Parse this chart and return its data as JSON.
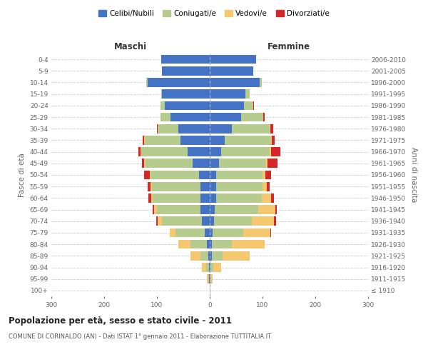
{
  "age_groups": [
    "100+",
    "95-99",
    "90-94",
    "85-89",
    "80-84",
    "75-79",
    "70-74",
    "65-69",
    "60-64",
    "55-59",
    "50-54",
    "45-49",
    "40-44",
    "35-39",
    "30-34",
    "25-29",
    "20-24",
    "15-19",
    "10-14",
    "5-9",
    "0-4"
  ],
  "birth_years": [
    "≤ 1910",
    "1911-1915",
    "1916-1920",
    "1921-1925",
    "1926-1930",
    "1931-1935",
    "1936-1940",
    "1941-1945",
    "1946-1950",
    "1951-1955",
    "1956-1960",
    "1961-1965",
    "1966-1970",
    "1971-1975",
    "1976-1980",
    "1981-1985",
    "1986-1990",
    "1991-1995",
    "1996-2000",
    "2001-2005",
    "2006-2010"
  ],
  "colors": {
    "celibi": "#4472c4",
    "coniugati": "#b5cc8e",
    "vedovi": "#f5c76e",
    "divorziati": "#d62728"
  },
  "maschi": {
    "celibi": [
      0,
      1,
      2,
      3,
      5,
      10,
      15,
      18,
      18,
      18,
      20,
      32,
      42,
      55,
      60,
      75,
      85,
      90,
      118,
      90,
      92
    ],
    "coniugati": [
      0,
      2,
      5,
      15,
      32,
      55,
      75,
      82,
      90,
      92,
      92,
      90,
      88,
      68,
      38,
      18,
      8,
      2,
      2,
      0,
      0
    ],
    "vedovi": [
      0,
      2,
      8,
      18,
      22,
      10,
      8,
      5,
      3,
      2,
      2,
      2,
      1,
      1,
      0,
      0,
      0,
      0,
      0,
      0,
      0
    ],
    "divorziati": [
      0,
      0,
      0,
      0,
      0,
      0,
      3,
      3,
      5,
      6,
      10,
      5,
      4,
      3,
      2,
      0,
      0,
      0,
      0,
      0,
      0
    ]
  },
  "femmine": {
    "celibi": [
      0,
      1,
      2,
      4,
      4,
      5,
      8,
      10,
      12,
      12,
      12,
      18,
      22,
      28,
      42,
      60,
      65,
      68,
      95,
      82,
      88
    ],
    "coniugati": [
      0,
      1,
      5,
      20,
      38,
      58,
      72,
      82,
      86,
      88,
      88,
      88,
      92,
      88,
      72,
      42,
      18,
      8,
      4,
      0,
      0
    ],
    "vedovi": [
      1,
      4,
      15,
      52,
      62,
      52,
      42,
      32,
      18,
      8,
      6,
      4,
      2,
      2,
      1,
      0,
      0,
      0,
      0,
      0,
      0
    ],
    "divorziati": [
      0,
      0,
      0,
      0,
      0,
      1,
      3,
      3,
      5,
      5,
      10,
      18,
      18,
      5,
      5,
      2,
      1,
      0,
      0,
      0,
      0
    ]
  },
  "title": "Popolazione per età, sesso e stato civile - 2011",
  "subtitle": "COMUNE DI CORINALDO (AN) - Dati ISTAT 1° gennaio 2011 - Elaborazione TUTTITALIA.IT",
  "xlabel_left": "Maschi",
  "xlabel_right": "Femmine",
  "ylabel_left": "Fasce di età",
  "ylabel_right": "Anni di nascita",
  "legend_labels": [
    "Celibi/Nubili",
    "Coniugati/e",
    "Vedovi/e",
    "Divorziati/e"
  ],
  "xlim": 300,
  "bg_color": "#ffffff",
  "grid_color": "#cccccc"
}
